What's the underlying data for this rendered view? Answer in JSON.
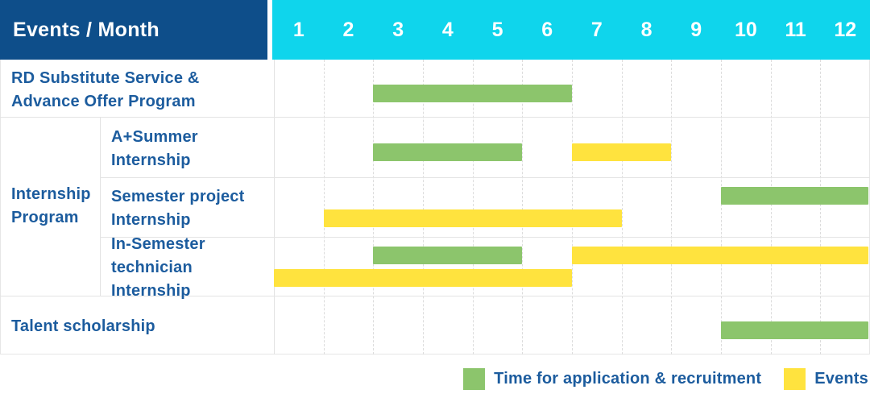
{
  "header": {
    "title": "Events / Month"
  },
  "colors": {
    "header_bg": "#0e4e8a",
    "months_bg": "#0fd5ec",
    "label_text": "#1c5c9e",
    "recruitment": "#8cc56c",
    "event": "#ffe33e"
  },
  "legend": {
    "items": [
      {
        "kind": "recruitment",
        "label": "Time for application & recruitment"
      },
      {
        "kind": "event",
        "label": "Events"
      }
    ]
  },
  "chart_data": {
    "type": "gantt",
    "title": "Events / Month",
    "months": [
      "1",
      "2",
      "3",
      "4",
      "5",
      "6",
      "7",
      "8",
      "9",
      "10",
      "11",
      "12"
    ],
    "x_range": [
      1,
      12
    ],
    "legend": {
      "green": "Time for application & recruitment",
      "yellow": "Events"
    },
    "group": {
      "id": "internship-program",
      "label_lines": [
        "Internship",
        "Program"
      ],
      "row_indexes": [
        1,
        2,
        3
      ]
    },
    "rows": [
      {
        "id": "rd-substitute-service",
        "label": "RD Substitute Service & Advance Offer Program",
        "label_lines": [
          "RD Substitute Service &",
          "Advance Offer Program"
        ],
        "indent": false,
        "bars": [
          {
            "kind": "recruitment",
            "start_month": 3,
            "end_month": 6,
            "lane": "center"
          }
        ]
      },
      {
        "id": "a-plus-summer-internship",
        "label": "A+Summer Internship",
        "label_lines": [
          "A+Summer",
          "Internship"
        ],
        "indent": true,
        "bars": [
          {
            "kind": "recruitment",
            "start_month": 3,
            "end_month": 5,
            "lane": "center"
          },
          {
            "kind": "event",
            "start_month": 7,
            "end_month": 8,
            "lane": "center"
          }
        ]
      },
      {
        "id": "semester-project-internship",
        "label": "Semester project Internship",
        "label_lines": [
          "Semester project",
          "Internship"
        ],
        "indent": true,
        "bars": [
          {
            "kind": "recruitment",
            "start_month": 10,
            "end_month": 12,
            "lane": "top"
          },
          {
            "kind": "event",
            "start_month": 2,
            "end_month": 7,
            "lane": "bottom"
          }
        ]
      },
      {
        "id": "in-semester-technician-internship",
        "label": "In-Semester technician Internship",
        "label_lines": [
          "In-Semester",
          "technician Internship"
        ],
        "indent": true,
        "bars": [
          {
            "kind": "recruitment",
            "start_month": 3,
            "end_month": 5,
            "lane": "top"
          },
          {
            "kind": "event",
            "start_month": 7,
            "end_month": 12,
            "lane": "top"
          },
          {
            "kind": "event",
            "start_month": 1,
            "end_month": 6,
            "lane": "bottom"
          }
        ]
      },
      {
        "id": "talent-scholarship",
        "label": "Talent scholarship",
        "label_lines": [
          "Talent scholarship"
        ],
        "indent": false,
        "bars": [
          {
            "kind": "recruitment",
            "start_month": 10,
            "end_month": 12,
            "lane": "center"
          }
        ]
      }
    ]
  }
}
